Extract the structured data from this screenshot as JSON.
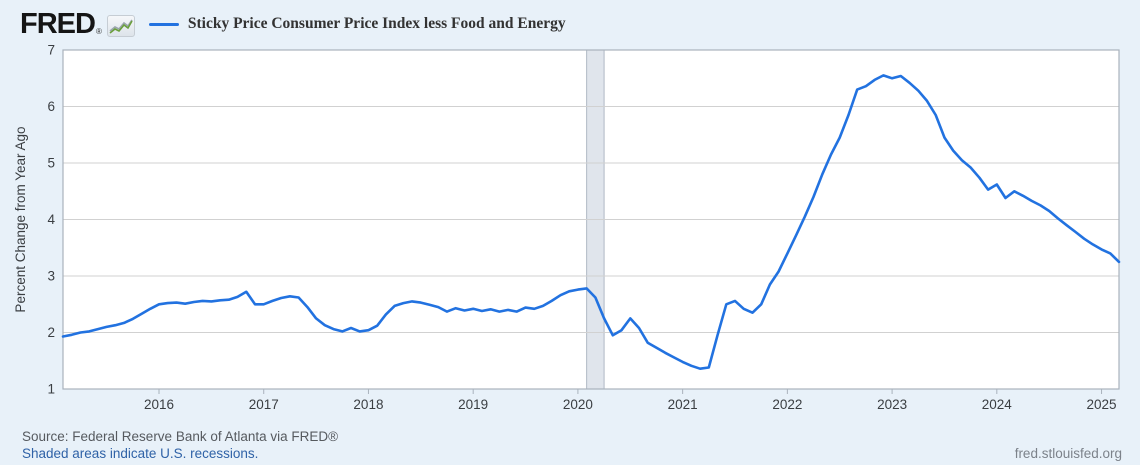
{
  "header": {
    "logo_text": "FRED",
    "logo_reg": "®"
  },
  "chart_data": {
    "type": "line",
    "title": "Sticky Price Consumer Price Index less Food and Energy",
    "xlabel": "",
    "ylabel": "Percent Change from Year Ago",
    "ylim": [
      1,
      7
    ],
    "yticks": [
      1,
      2,
      3,
      4,
      5,
      6,
      7
    ],
    "xticks": [
      2016,
      2017,
      2018,
      2019,
      2020,
      2021,
      2022,
      2023,
      2024,
      2025
    ],
    "x_tick_labels": [
      "2016",
      "2017",
      "2018",
      "2019",
      "2020",
      "2021",
      "2022",
      "2023",
      "2024",
      "2025"
    ],
    "x_range": [
      "2015-02",
      "2025-03"
    ],
    "grid": "horizontal-only",
    "legend_position": "top-left-header",
    "line_color": "#2272e0",
    "plot_bg": "#ffffff",
    "gridline_color": "#d1d1d1",
    "border_color": "#a9b2bc",
    "recession_band_fill": "#e0e5ec",
    "recession_band_edge": "#b0b8c4",
    "recession_bands": [
      {
        "start": "2020-02",
        "end": "2020-04"
      }
    ],
    "series": [
      {
        "name": "Sticky Price Consumer Price Index less Food and Energy",
        "unit": "Percent Change from Year Ago",
        "frequency": "monthly",
        "dates": [
          "2015-02",
          "2015-03",
          "2015-04",
          "2015-05",
          "2015-06",
          "2015-07",
          "2015-08",
          "2015-09",
          "2015-10",
          "2015-11",
          "2015-12",
          "2016-01",
          "2016-02",
          "2016-03",
          "2016-04",
          "2016-05",
          "2016-06",
          "2016-07",
          "2016-08",
          "2016-09",
          "2016-10",
          "2016-11",
          "2016-12",
          "2017-01",
          "2017-02",
          "2017-03",
          "2017-04",
          "2017-05",
          "2017-06",
          "2017-07",
          "2017-08",
          "2017-09",
          "2017-10",
          "2017-11",
          "2017-12",
          "2018-01",
          "2018-02",
          "2018-03",
          "2018-04",
          "2018-05",
          "2018-06",
          "2018-07",
          "2018-08",
          "2018-09",
          "2018-10",
          "2018-11",
          "2018-12",
          "2019-01",
          "2019-02",
          "2019-03",
          "2019-04",
          "2019-05",
          "2019-06",
          "2019-07",
          "2019-08",
          "2019-09",
          "2019-10",
          "2019-11",
          "2019-12",
          "2020-01",
          "2020-02",
          "2020-03",
          "2020-04",
          "2020-05",
          "2020-06",
          "2020-07",
          "2020-08",
          "2020-09",
          "2020-10",
          "2020-11",
          "2020-12",
          "2021-01",
          "2021-02",
          "2021-03",
          "2021-04",
          "2021-05",
          "2021-06",
          "2021-07",
          "2021-08",
          "2021-09",
          "2021-10",
          "2021-11",
          "2021-12",
          "2022-01",
          "2022-02",
          "2022-03",
          "2022-04",
          "2022-05",
          "2022-06",
          "2022-07",
          "2022-08",
          "2022-09",
          "2022-10",
          "2022-11",
          "2022-12",
          "2023-01",
          "2023-02",
          "2023-03",
          "2023-04",
          "2023-05",
          "2023-06",
          "2023-07",
          "2023-08",
          "2023-09",
          "2023-10",
          "2023-11",
          "2023-12",
          "2024-01",
          "2024-02",
          "2024-03",
          "2024-04",
          "2024-05",
          "2024-06",
          "2024-07",
          "2024-08",
          "2024-09",
          "2024-10",
          "2024-11",
          "2024-12",
          "2025-01",
          "2025-02",
          "2025-03"
        ],
        "values": [
          1.93,
          1.96,
          2.0,
          2.02,
          2.06,
          2.1,
          2.13,
          2.17,
          2.24,
          2.33,
          2.42,
          2.5,
          2.52,
          2.53,
          2.51,
          2.54,
          2.56,
          2.55,
          2.57,
          2.58,
          2.63,
          2.72,
          2.5,
          2.5,
          2.56,
          2.61,
          2.64,
          2.62,
          2.45,
          2.25,
          2.13,
          2.06,
          2.02,
          2.08,
          2.02,
          2.04,
          2.12,
          2.32,
          2.47,
          2.52,
          2.55,
          2.53,
          2.49,
          2.45,
          2.37,
          2.43,
          2.39,
          2.42,
          2.38,
          2.41,
          2.37,
          2.4,
          2.37,
          2.44,
          2.42,
          2.47,
          2.56,
          2.66,
          2.73,
          2.76,
          2.78,
          2.62,
          2.25,
          1.95,
          2.04,
          2.25,
          2.08,
          1.82,
          1.73,
          1.64,
          1.56,
          1.48,
          1.41,
          1.36,
          1.38,
          1.95,
          2.5,
          2.56,
          2.42,
          2.35,
          2.5,
          2.85,
          3.08,
          3.4,
          3.72,
          4.05,
          4.4,
          4.8,
          5.15,
          5.45,
          5.85,
          6.3,
          6.36,
          6.47,
          6.55,
          6.5,
          6.54,
          6.42,
          6.28,
          6.1,
          5.85,
          5.45,
          5.22,
          5.05,
          4.92,
          4.74,
          4.53,
          4.62,
          4.38,
          4.5,
          4.42,
          4.33,
          4.25,
          4.15,
          4.02,
          3.9,
          3.78,
          3.66,
          3.56,
          3.47,
          3.4,
          3.25
        ]
      }
    ]
  },
  "footer": {
    "source": "Source: Federal Reserve Bank of Atlanta via FRED®",
    "recession_note": "Shaded areas indicate U.S. recessions.",
    "site": "fred.stlouisfed.org"
  }
}
